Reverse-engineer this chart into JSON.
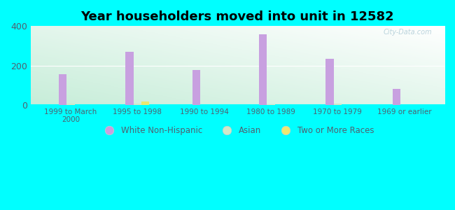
{
  "title": "Year householders moved into unit in 12582",
  "categories": [
    "1999 to March\n2000",
    "1995 to 1998",
    "1990 to 1994",
    "1980 to 1989",
    "1970 to 1979",
    "1969 or earlier"
  ],
  "series": {
    "White Non-Hispanic": [
      155,
      270,
      178,
      358,
      235,
      80
    ],
    "Asian": [
      8,
      8,
      0,
      5,
      8,
      0
    ],
    "Two or More Races": [
      0,
      18,
      0,
      0,
      0,
      0
    ]
  },
  "colors": {
    "White Non-Hispanic": "#c8a0e0",
    "Asian": "#d0e8c8",
    "Two or More Races": "#ece870"
  },
  "ylim": [
    0,
    400
  ],
  "yticks": [
    0,
    200,
    400
  ],
  "background_color": "#00ffff",
  "watermark": "City-Data.com",
  "bar_width": 0.12,
  "title_fontsize": 13
}
